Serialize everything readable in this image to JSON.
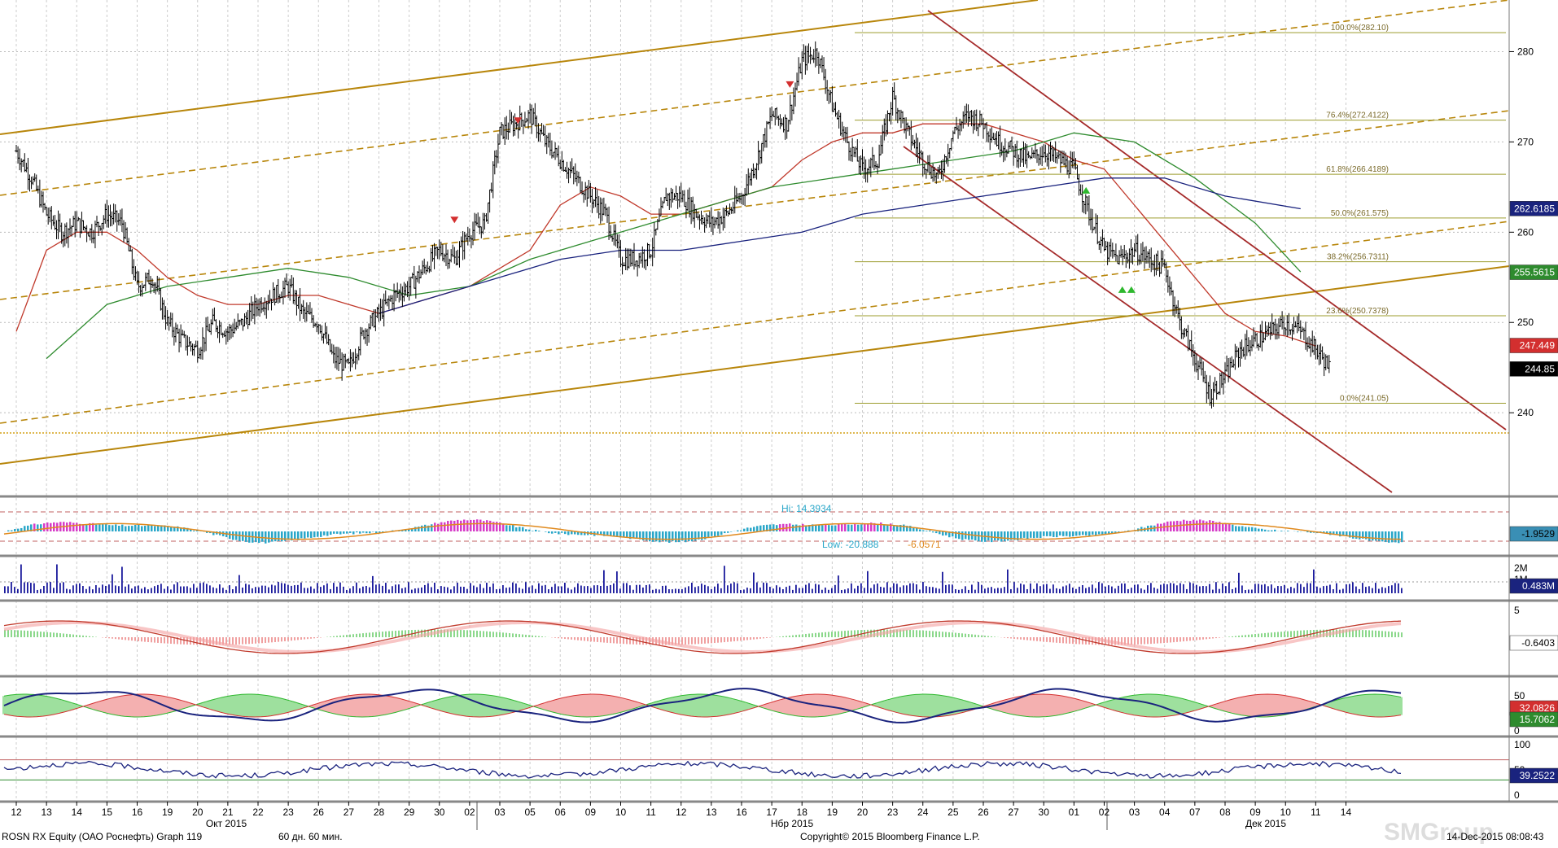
{
  "footer": {
    "ticker": "ROSN RX Equity (ОАО Роснефть) Graph 119",
    "period": "60 дн. 60 мин.",
    "copyright": "Copyright© 2015 Bloomberg Finance L.P.",
    "timestamp": "14-Dec-2015 08:08:43"
  },
  "watermark": "SMGroup",
  "colors": {
    "up": "#000000",
    "ma_red": "#c0392b",
    "ma_green": "#2e8b2e",
    "ma_blue": "#1a237e",
    "channel_gold": "#b8860b",
    "downtrend": "#a52a2a",
    "fib": "#9c9c2e",
    "hist_cyan": "#2aa7c9",
    "hist_magenta": "#d63cc8",
    "vol_bar": "#1a1a9c"
  },
  "chart_data": [
    {
      "type": "candlestick",
      "panel": "price",
      "ylim": [
        231,
        285
      ],
      "y_ticks": [
        240,
        250,
        260,
        270,
        280
      ],
      "x_tick_labels": [
        "12",
        "13",
        "14",
        "15",
        "16",
        "19",
        "20",
        "21",
        "22",
        "23",
        "26",
        "27",
        "28",
        "29",
        "30",
        "02",
        "03",
        "05",
        "06",
        "09",
        "10",
        "11",
        "12",
        "13",
        "16",
        "17",
        "18",
        "19",
        "20",
        "23",
        "24",
        "25",
        "26",
        "27",
        "30",
        "01",
        "02",
        "03",
        "04",
        "07",
        "08",
        "09",
        "10",
        "11",
        "14"
      ],
      "month_labels": [
        "Окт 2015",
        "Нбр 2015",
        "Дек 2015"
      ],
      "close_path": [
        {
          "x": 0,
          "y": 269
        },
        {
          "x": 0.5,
          "y": 266
        },
        {
          "x": 1,
          "y": 262
        },
        {
          "x": 1.5,
          "y": 260
        },
        {
          "x": 2,
          "y": 261
        },
        {
          "x": 2.5,
          "y": 260
        },
        {
          "x": 3,
          "y": 262
        },
        {
          "x": 3.5,
          "y": 261
        },
        {
          "x": 4,
          "y": 254
        },
        {
          "x": 4.5,
          "y": 255
        },
        {
          "x": 5,
          "y": 250
        },
        {
          "x": 5.5,
          "y": 248
        },
        {
          "x": 6,
          "y": 247
        },
        {
          "x": 6.5,
          "y": 250
        },
        {
          "x": 7,
          "y": 249
        },
        {
          "x": 7.5,
          "y": 250
        },
        {
          "x": 8,
          "y": 252
        },
        {
          "x": 8.5,
          "y": 253
        },
        {
          "x": 9,
          "y": 254
        },
        {
          "x": 9.5,
          "y": 251
        },
        {
          "x": 10,
          "y": 250
        },
        {
          "x": 10.5,
          "y": 246
        },
        {
          "x": 11,
          "y": 245
        },
        {
          "x": 11.5,
          "y": 249
        },
        {
          "x": 12,
          "y": 251
        },
        {
          "x": 12.5,
          "y": 253
        },
        {
          "x": 13,
          "y": 254
        },
        {
          "x": 13.5,
          "y": 256
        },
        {
          "x": 14,
          "y": 258
        },
        {
          "x": 14.5,
          "y": 257
        },
        {
          "x": 15,
          "y": 260
        },
        {
          "x": 15.5,
          "y": 261
        },
        {
          "x": 16,
          "y": 271
        },
        {
          "x": 16.5,
          "y": 272
        },
        {
          "x": 17,
          "y": 273
        },
        {
          "x": 17.5,
          "y": 270
        },
        {
          "x": 18,
          "y": 268
        },
        {
          "x": 18.5,
          "y": 266
        },
        {
          "x": 19,
          "y": 264
        },
        {
          "x": 19.5,
          "y": 262
        },
        {
          "x": 20,
          "y": 257
        },
        {
          "x": 20.5,
          "y": 257
        },
        {
          "x": 21,
          "y": 258
        },
        {
          "x": 21.5,
          "y": 264
        },
        {
          "x": 22,
          "y": 264
        },
        {
          "x": 22.5,
          "y": 262
        },
        {
          "x": 23,
          "y": 261
        },
        {
          "x": 23.5,
          "y": 262
        },
        {
          "x": 24,
          "y": 264
        },
        {
          "x": 24.5,
          "y": 268
        },
        {
          "x": 25,
          "y": 273
        },
        {
          "x": 25.5,
          "y": 272
        },
        {
          "x": 26,
          "y": 279
        },
        {
          "x": 26.5,
          "y": 280
        },
        {
          "x": 27,
          "y": 274
        },
        {
          "x": 27.5,
          "y": 270
        },
        {
          "x": 28,
          "y": 267
        },
        {
          "x": 28.5,
          "y": 268
        },
        {
          "x": 29,
          "y": 275
        },
        {
          "x": 29.5,
          "y": 271
        },
        {
          "x": 30,
          "y": 268
        },
        {
          "x": 30.5,
          "y": 266
        },
        {
          "x": 31,
          "y": 271
        },
        {
          "x": 31.5,
          "y": 273
        },
        {
          "x": 32,
          "y": 272
        },
        {
          "x": 32.5,
          "y": 270
        },
        {
          "x": 33,
          "y": 269
        },
        {
          "x": 33.5,
          "y": 268
        },
        {
          "x": 34,
          "y": 269
        },
        {
          "x": 34.5,
          "y": 268
        },
        {
          "x": 35,
          "y": 267
        },
        {
          "x": 35.5,
          "y": 262
        },
        {
          "x": 36,
          "y": 258
        },
        {
          "x": 36.5,
          "y": 257
        },
        {
          "x": 37,
          "y": 258
        },
        {
          "x": 37.5,
          "y": 257
        },
        {
          "x": 38,
          "y": 256
        },
        {
          "x": 38.5,
          "y": 250
        },
        {
          "x": 39,
          "y": 246
        },
        {
          "x": 39.5,
          "y": 242
        },
        {
          "x": 40,
          "y": 244
        },
        {
          "x": 40.5,
          "y": 247
        },
        {
          "x": 41,
          "y": 248
        },
        {
          "x": 41.5,
          "y": 249
        },
        {
          "x": 42,
          "y": 250
        },
        {
          "x": 42.5,
          "y": 249
        },
        {
          "x": 43,
          "y": 247
        },
        {
          "x": 43.5,
          "y": 244.85
        }
      ],
      "moving_averages": [
        {
          "color_key": "ma_red",
          "points": [
            {
              "x": 0,
              "y": 249
            },
            {
              "x": 1,
              "y": 258
            },
            {
              "x": 2,
              "y": 260
            },
            {
              "x": 3,
              "y": 260
            },
            {
              "x": 4,
              "y": 258
            },
            {
              "x": 5,
              "y": 255
            },
            {
              "x": 6,
              "y": 253
            },
            {
              "x": 7,
              "y": 252
            },
            {
              "x": 8,
              "y": 252
            },
            {
              "x": 9,
              "y": 253
            },
            {
              "x": 10,
              "y": 253
            },
            {
              "x": 11,
              "y": 252
            },
            {
              "x": 12,
              "y": 251
            },
            {
              "x": 13,
              "y": 252
            },
            {
              "x": 14,
              "y": 253
            },
            {
              "x": 15,
              "y": 254
            },
            {
              "x": 16,
              "y": 256
            },
            {
              "x": 17,
              "y": 258
            },
            {
              "x": 18,
              "y": 263
            },
            {
              "x": 19,
              "y": 265
            },
            {
              "x": 20,
              "y": 264
            },
            {
              "x": 21,
              "y": 262
            },
            {
              "x": 22,
              "y": 262
            },
            {
              "x": 23,
              "y": 263
            },
            {
              "x": 24,
              "y": 264
            },
            {
              "x": 25,
              "y": 265
            },
            {
              "x": 26,
              "y": 268
            },
            {
              "x": 27,
              "y": 270
            },
            {
              "x": 28,
              "y": 271
            },
            {
              "x": 29,
              "y": 271
            },
            {
              "x": 30,
              "y": 272
            },
            {
              "x": 31,
              "y": 272
            },
            {
              "x": 32,
              "y": 272
            },
            {
              "x": 33,
              "y": 271
            },
            {
              "x": 34,
              "y": 270
            },
            {
              "x": 35,
              "y": 268
            },
            {
              "x": 36,
              "y": 267
            },
            {
              "x": 37,
              "y": 263
            },
            {
              "x": 38,
              "y": 259
            },
            {
              "x": 39,
              "y": 255
            },
            {
              "x": 40,
              "y": 251
            },
            {
              "x": 41,
              "y": 249
            },
            {
              "x": 42,
              "y": 248.5
            },
            {
              "x": 43,
              "y": 247.4
            }
          ]
        },
        {
          "color_key": "ma_green",
          "points": [
            {
              "x": 1,
              "y": 246
            },
            {
              "x": 3,
              "y": 252
            },
            {
              "x": 5,
              "y": 254
            },
            {
              "x": 7,
              "y": 255
            },
            {
              "x": 9,
              "y": 256
            },
            {
              "x": 11,
              "y": 255
            },
            {
              "x": 13,
              "y": 253
            },
            {
              "x": 15,
              "y": 254
            },
            {
              "x": 17,
              "y": 257
            },
            {
              "x": 19,
              "y": 259
            },
            {
              "x": 21,
              "y": 261
            },
            {
              "x": 23,
              "y": 263
            },
            {
              "x": 25,
              "y": 265
            },
            {
              "x": 27,
              "y": 266
            },
            {
              "x": 29,
              "y": 267
            },
            {
              "x": 31,
              "y": 268
            },
            {
              "x": 33,
              "y": 269
            },
            {
              "x": 35,
              "y": 271
            },
            {
              "x": 37,
              "y": 270
            },
            {
              "x": 39,
              "y": 266
            },
            {
              "x": 41,
              "y": 261
            },
            {
              "x": 42.5,
              "y": 255.6
            }
          ]
        },
        {
          "color_key": "ma_blue",
          "points": [
            {
              "x": 12,
              "y": 251
            },
            {
              "x": 14,
              "y": 253
            },
            {
              "x": 16,
              "y": 255
            },
            {
              "x": 18,
              "y": 257
            },
            {
              "x": 20,
              "y": 258
            },
            {
              "x": 22,
              "y": 258
            },
            {
              "x": 24,
              "y": 259
            },
            {
              "x": 26,
              "y": 260
            },
            {
              "x": 28,
              "y": 262
            },
            {
              "x": 30,
              "y": 263
            },
            {
              "x": 32,
              "y": 264
            },
            {
              "x": 34,
              "y": 265
            },
            {
              "x": 36,
              "y": 266
            },
            {
              "x": 38,
              "y": 266
            },
            {
              "x": 40,
              "y": 264
            },
            {
              "x": 42.5,
              "y": 262.6
            }
          ]
        }
      ],
      "fib_levels": [
        {
          "label": "100.0%(282.10)",
          "value": 282.1
        },
        {
          "label": "76.4%(272.4122)",
          "value": 272.4122
        },
        {
          "label": "61.8%(266.4189)",
          "value": 266.4189
        },
        {
          "label": "50.0%(261.575)",
          "value": 261.575
        },
        {
          "label": "38.2%(256.7311)",
          "value": 256.7311
        },
        {
          "label": "23.6%(250.7378)",
          "value": 250.7378
        },
        {
          "label": "0.0%(241.05)",
          "value": 241.05
        }
      ],
      "price_tags": [
        {
          "text": "262.6185",
          "bg": "#1a237e",
          "fg": "#ffffff",
          "value": 262.6185
        },
        {
          "text": "255.5615",
          "bg": "#2e8b2e",
          "fg": "#ffffff",
          "value": 255.5615
        },
        {
          "text": "247.449",
          "bg": "#d32f2f",
          "fg": "#ffffff",
          "value": 247.449
        },
        {
          "text": "244.85",
          "bg": "#000000",
          "fg": "#ffffff",
          "value": 244.85
        }
      ]
    },
    {
      "type": "histogram",
      "panel": "oscillator",
      "labels": [
        "Hi: 14.3934",
        "Low: -20.888",
        "-6.0571"
      ],
      "tag": {
        "text": "-1.9529",
        "bg": "#3a8fb5",
        "fg": "#000000"
      }
    },
    {
      "type": "bar",
      "panel": "volume",
      "y_tick_labels": [
        "2M",
        "1M"
      ],
      "tag": {
        "text": "0.483M",
        "bg": "#1a237e",
        "fg": "#ffffff"
      }
    },
    {
      "type": "line",
      "panel": "macd",
      "y_tick_labels": [
        "5",
        "0"
      ],
      "tag": {
        "text": "-0.6403",
        "bg": "#ffffff",
        "fg": "#000000"
      }
    },
    {
      "type": "area",
      "panel": "dmi",
      "y_tick_labels": [
        "50",
        "0"
      ],
      "tags": [
        {
          "text": "32.0826",
          "bg": "#d32f2f",
          "fg": "#ffffff"
        },
        {
          "text": "15.7062",
          "bg": "#2e8b2e",
          "fg": "#ffffff"
        }
      ]
    },
    {
      "type": "line",
      "panel": "rsi",
      "y_tick_labels": [
        "100",
        "50",
        "0"
      ],
      "tag": {
        "text": "39.2522",
        "bg": "#1a237e",
        "fg": "#ffffff"
      }
    }
  ]
}
